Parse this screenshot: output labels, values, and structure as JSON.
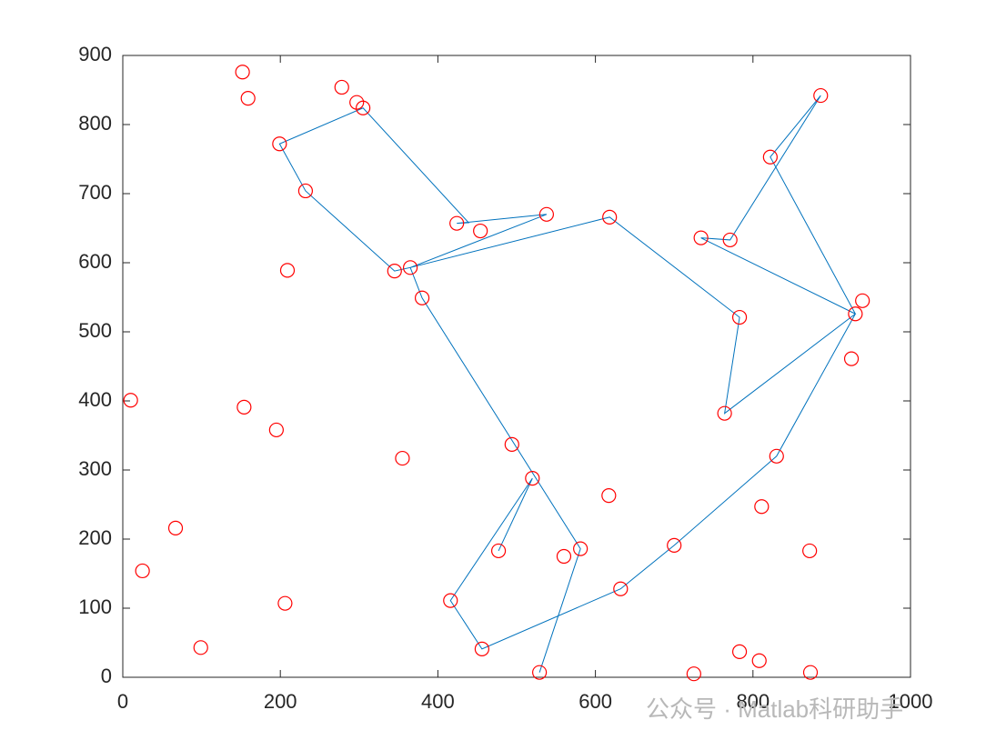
{
  "chart_data": {
    "type": "scatter",
    "xlim": [
      0,
      1000
    ],
    "ylim": [
      0,
      900
    ],
    "xticks": [
      0,
      200,
      400,
      600,
      800,
      1000
    ],
    "yticks": [
      0,
      100,
      200,
      300,
      400,
      500,
      600,
      700,
      800,
      900
    ],
    "annotations": [
      "公众号 · Matlab科研助手"
    ],
    "series": [
      {
        "type": "line",
        "color": "#0072bd",
        "x": [
          529,
          581,
          380,
          365,
          345,
          232,
          199,
          305,
          439,
          424,
          538,
          365,
          618,
          783,
          764,
          930,
          734,
          771,
          886,
          822,
          930,
          830,
          700,
          632,
          456,
          416,
          520,
          477
        ],
        "y": [
          7,
          186,
          549,
          593,
          588,
          704,
          772,
          824,
          658,
          657,
          670,
          593,
          666,
          521,
          382,
          526,
          636,
          633,
          842,
          753,
          526,
          320,
          191,
          128,
          41,
          111,
          288,
          183
        ]
      },
      {
        "type": "scatter",
        "color": "#ff0000",
        "x": [
          152,
          159,
          278,
          297,
          305,
          199,
          232,
          209,
          345,
          365,
          380,
          424,
          454,
          538,
          618,
          734,
          771,
          822,
          886,
          939,
          930,
          783,
          925,
          764,
          10,
          154,
          195,
          355,
          494,
          520,
          617,
          830,
          811,
          872,
          67,
          25,
          477,
          560,
          581,
          700,
          632,
          416,
          206,
          456,
          99,
          529,
          783,
          808,
          725,
          873
        ],
        "y": [
          876,
          838,
          854,
          832,
          824,
          772,
          704,
          589,
          588,
          593,
          549,
          657,
          646,
          670,
          666,
          636,
          633,
          753,
          842,
          545,
          526,
          521,
          461,
          382,
          401,
          391,
          358,
          317,
          337,
          288,
          263,
          320,
          247,
          183,
          216,
          154,
          183,
          175,
          186,
          191,
          128,
          111,
          107,
          41,
          43,
          7,
          37,
          24,
          5,
          7
        ]
      }
    ]
  }
}
